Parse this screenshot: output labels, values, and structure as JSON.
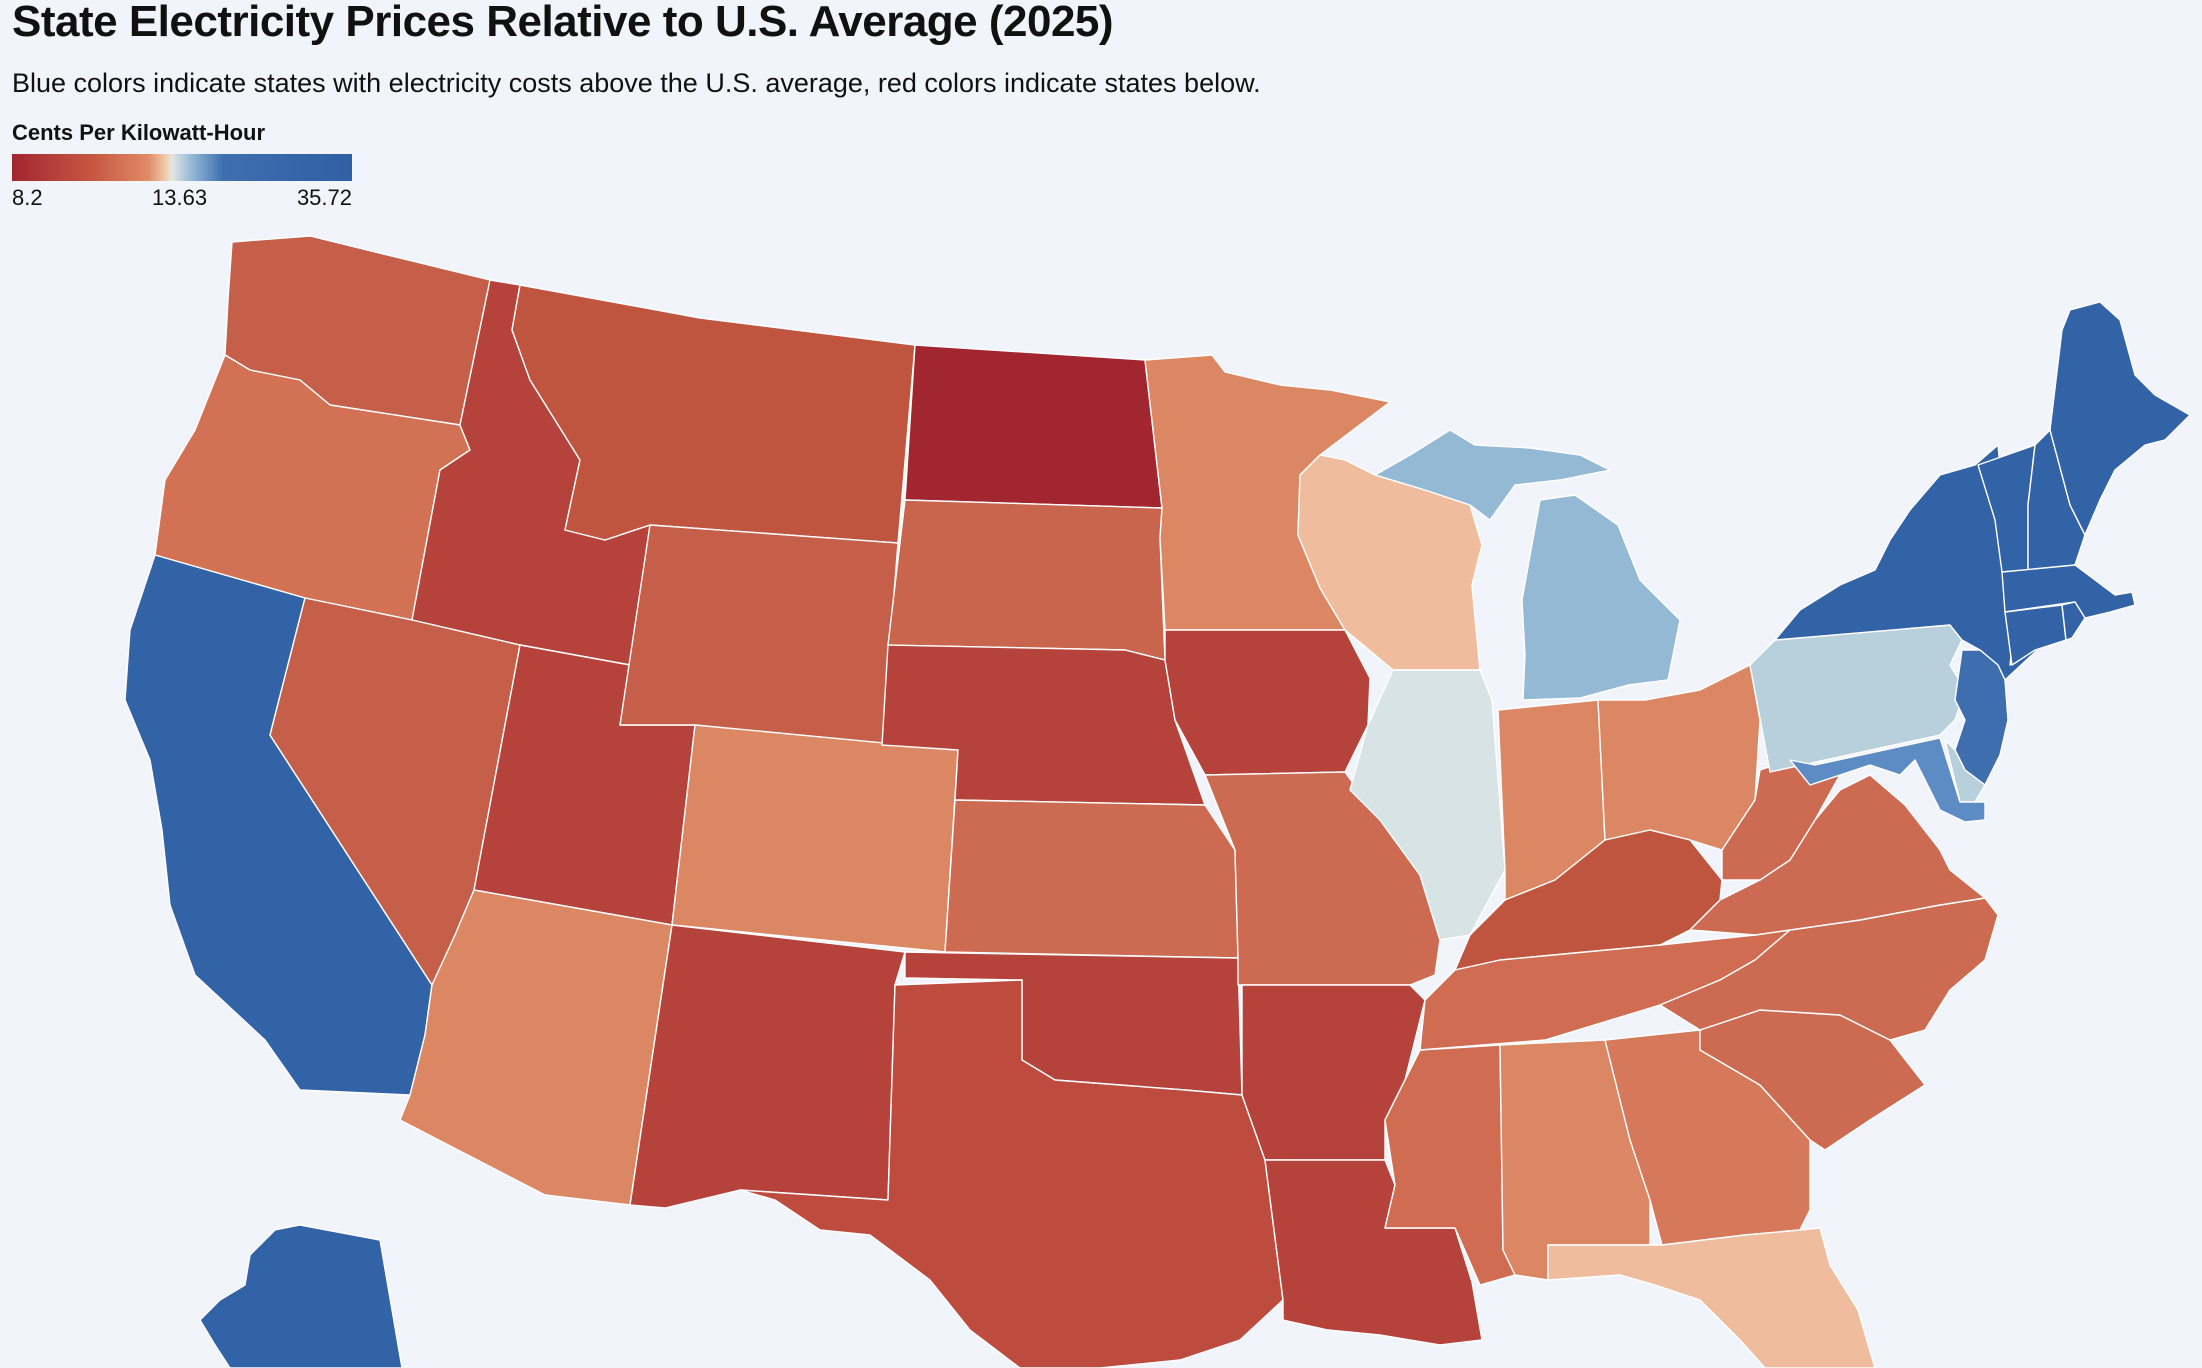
{
  "title": "State Electricity Prices Relative to U.S. Average (2025)",
  "subtitle": "Blue colors indicate states with electricity costs above the U.S. average, red colors indicate states below.",
  "legend": {
    "title": "Cents Per Kilowatt-Hour",
    "min_label": "8.2",
    "mid_label": "13.63",
    "max_label": "35.72"
  },
  "colors": {
    "background": "#f1f4fa",
    "lowest": "#a22630",
    "low": "#b5433b",
    "mid_low": "#c55f4a",
    "moderate_low": "#dc8763",
    "near_average_low": "#efbd9e",
    "near_average": "#d7e3e5",
    "above_light": "#b8cfdc",
    "above": "#94b9d4",
    "above_mid": "#5d8cc4",
    "highest": "#3263a6"
  },
  "map": {
    "states": [
      {
        "name": "Washington",
        "color": "#c55f4a"
      },
      {
        "name": "Oregon",
        "color": "#d27154"
      },
      {
        "name": "California",
        "color": "#3263a6"
      },
      {
        "name": "Idaho",
        "color": "#b5433b"
      },
      {
        "name": "Nevada",
        "color": "#c0553f"
      },
      {
        "name": "Montana",
        "color": "#c55f4a"
      },
      {
        "name": "Wyoming",
        "color": "#b5433b"
      },
      {
        "name": "Utah",
        "color": "#c55f4a"
      },
      {
        "name": "Arizona",
        "color": "#dc8763"
      },
      {
        "name": "Colorado",
        "color": "#dc8763"
      },
      {
        "name": "New Mexico",
        "color": "#b5433b"
      },
      {
        "name": "North Dakota",
        "color": "#a22630"
      },
      {
        "name": "South Dakota",
        "color": "#c8654c"
      },
      {
        "name": "Nebraska",
        "color": "#b5433b"
      },
      {
        "name": "Kansas",
        "color": "#cc6b51"
      },
      {
        "name": "Oklahoma",
        "color": "#b5433b"
      },
      {
        "name": "Texas",
        "color": "#bd4b3e"
      },
      {
        "name": "Minnesota",
        "color": "#dc8763"
      },
      {
        "name": "Iowa",
        "color": "#b5433b"
      },
      {
        "name": "Missouri",
        "color": "#cc6b51"
      },
      {
        "name": "Arkansas",
        "color": "#b5433b"
      },
      {
        "name": "Louisiana",
        "color": "#b5433b"
      },
      {
        "name": "Wisconsin",
        "color": "#efbd9e"
      },
      {
        "name": "Illinois",
        "color": "#d7e3e5"
      },
      {
        "name": "Michigan",
        "color": "#94b9d4"
      },
      {
        "name": "Indiana",
        "color": "#dc8763"
      },
      {
        "name": "Ohio",
        "color": "#dc8763"
      },
      {
        "name": "Kentucky",
        "color": "#c0553f"
      },
      {
        "name": "Tennessee",
        "color": "#d06c52"
      },
      {
        "name": "Mississippi",
        "color": "#d06c52"
      },
      {
        "name": "Alabama",
        "color": "#dc8763"
      },
      {
        "name": "Georgia",
        "color": "#d6795a"
      },
      {
        "name": "Florida",
        "color": "#efbd9e"
      },
      {
        "name": "South Carolina",
        "color": "#cc6b51"
      },
      {
        "name": "North Carolina",
        "color": "#cc6b51"
      },
      {
        "name": "Virginia",
        "color": "#cc6b51"
      },
      {
        "name": "West Virginia",
        "color": "#cc6b51"
      },
      {
        "name": "Pennsylvania",
        "color": "#b8cfdc"
      },
      {
        "name": "New York",
        "color": "#3263a6"
      },
      {
        "name": "Vermont",
        "color": "#3263a6"
      },
      {
        "name": "New Hampshire",
        "color": "#3263a6"
      },
      {
        "name": "Maine",
        "color": "#3263a6"
      },
      {
        "name": "Massachusetts",
        "color": "#3263a6"
      },
      {
        "name": "Connecticut",
        "color": "#3263a6"
      },
      {
        "name": "Rhode Island",
        "color": "#3263a6"
      },
      {
        "name": "New Jersey",
        "color": "#3f6eae"
      },
      {
        "name": "Delaware",
        "color": "#b8cfdc"
      },
      {
        "name": "Maryland",
        "color": "#5d8cc4"
      },
      {
        "name": "Alaska",
        "color": "#3263a6"
      }
    ]
  }
}
